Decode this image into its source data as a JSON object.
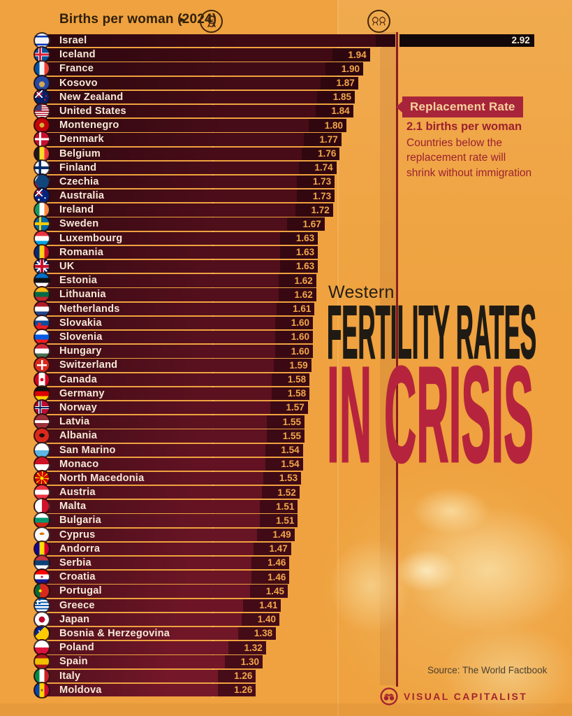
{
  "header": {
    "label": "Births per woman (2024)",
    "arrow": "▸"
  },
  "callout": {
    "title": "Replacement Rate",
    "rate_label": "2.1 births per woman",
    "note": "Countries below the replacement rate will shrink without immigration"
  },
  "title": {
    "kicker": "Western",
    "main": "FERTILITY RATES",
    "accent": "IN CRISIS"
  },
  "footer": {
    "source": "Source: The World Factbook",
    "brand": "VISUAL CAPITALIST"
  },
  "colors": {
    "background": "#efa23f",
    "bar_top": "#3f0a14",
    "bar_bottom": "#741729",
    "bar_black": "#130809",
    "value_text": "#f2a748",
    "value_text_over_black": "#f4ead8",
    "country_text": "#f6e9d6",
    "gridline": "rgba(255,226,180,0.38)",
    "replacement_line": "#8a1c20",
    "callout_bg": "#a8243a",
    "callout_text": "#f6d49c",
    "crimson_text": "#9c2030",
    "title_black": "#1f1b14",
    "title_red": "#b5243c",
    "brand_red": "#a3242e"
  },
  "chart_data": {
    "type": "bar",
    "orientation": "horizontal",
    "title": "Western Fertility Rates in Crisis",
    "subtitle": "Births per woman (2024)",
    "unit": "births per woman",
    "year": "2024",
    "xlim": [
      0,
      3
    ],
    "axis_markers": [
      {
        "value": 1.0,
        "icon": "one-baby-icon"
      },
      {
        "value": 2.0,
        "icon": "two-babies-icon"
      }
    ],
    "replacement_rate": 2.1,
    "countries": [
      {
        "name": "Israel",
        "value": "2.92",
        "flag": "il"
      },
      {
        "name": "Iceland",
        "value": "1.94",
        "flag": "is"
      },
      {
        "name": "France",
        "value": "1.90",
        "flag": "fr"
      },
      {
        "name": "Kosovo",
        "value": "1.87",
        "flag": "xk"
      },
      {
        "name": "New Zealand",
        "value": "1.85",
        "flag": "nz"
      },
      {
        "name": "United States",
        "value": "1.84",
        "flag": "us"
      },
      {
        "name": "Montenegro",
        "value": "1.80",
        "flag": "me"
      },
      {
        "name": "Denmark",
        "value": "1.77",
        "flag": "dk"
      },
      {
        "name": "Belgium",
        "value": "1.76",
        "flag": "be"
      },
      {
        "name": "Finland",
        "value": "1.74",
        "flag": "fi"
      },
      {
        "name": "Czechia",
        "value": "1.73",
        "flag": "cz"
      },
      {
        "name": "Australia",
        "value": "1.73",
        "flag": "au"
      },
      {
        "name": "Ireland",
        "value": "1.72",
        "flag": "ie"
      },
      {
        "name": "Sweden",
        "value": "1.67",
        "flag": "se"
      },
      {
        "name": "Luxembourg",
        "value": "1.63",
        "flag": "lu"
      },
      {
        "name": "Romania",
        "value": "1.63",
        "flag": "ro"
      },
      {
        "name": "UK",
        "value": "1.63",
        "flag": "gb"
      },
      {
        "name": "Estonia",
        "value": "1.62",
        "flag": "ee"
      },
      {
        "name": "Lithuania",
        "value": "1.62",
        "flag": "lt"
      },
      {
        "name": "Netherlands",
        "value": "1.61",
        "flag": "nl"
      },
      {
        "name": "Slovakia",
        "value": "1.60",
        "flag": "sk"
      },
      {
        "name": "Slovenia",
        "value": "1.60",
        "flag": "si"
      },
      {
        "name": "Hungary",
        "value": "1.60",
        "flag": "hu"
      },
      {
        "name": "Switzerland",
        "value": "1.59",
        "flag": "ch"
      },
      {
        "name": "Canada",
        "value": "1.58",
        "flag": "ca"
      },
      {
        "name": "Germany",
        "value": "1.58",
        "flag": "de"
      },
      {
        "name": "Norway",
        "value": "1.57",
        "flag": "no"
      },
      {
        "name": "Latvia",
        "value": "1.55",
        "flag": "lv"
      },
      {
        "name": "Albania",
        "value": "1.55",
        "flag": "al"
      },
      {
        "name": "San Marino",
        "value": "1.54",
        "flag": "sm"
      },
      {
        "name": "Monaco",
        "value": "1.54",
        "flag": "mc"
      },
      {
        "name": "North Macedonia",
        "value": "1.53",
        "flag": "mk"
      },
      {
        "name": "Austria",
        "value": "1.52",
        "flag": "at"
      },
      {
        "name": "Malta",
        "value": "1.51",
        "flag": "mt"
      },
      {
        "name": "Bulgaria",
        "value": "1.51",
        "flag": "bg"
      },
      {
        "name": "Cyprus",
        "value": "1.49",
        "flag": "cy"
      },
      {
        "name": "Andorra",
        "value": "1.47",
        "flag": "ad"
      },
      {
        "name": "Serbia",
        "value": "1.46",
        "flag": "rs"
      },
      {
        "name": "Croatia",
        "value": "1.46",
        "flag": "hr"
      },
      {
        "name": "Portugal",
        "value": "1.45",
        "flag": "pt"
      },
      {
        "name": "Greece",
        "value": "1.41",
        "flag": "gr"
      },
      {
        "name": "Japan",
        "value": "1.40",
        "flag": "jp"
      },
      {
        "name": "Bosnia & Herzegovina",
        "value": "1.38",
        "flag": "ba"
      },
      {
        "name": "Poland",
        "value": "1.32",
        "flag": "pl"
      },
      {
        "name": "Spain",
        "value": "1.30",
        "flag": "es"
      },
      {
        "name": "Italy",
        "value": "1.26",
        "flag": "it"
      },
      {
        "name": "Moldova",
        "value": "1.26",
        "flag": "md"
      }
    ]
  }
}
